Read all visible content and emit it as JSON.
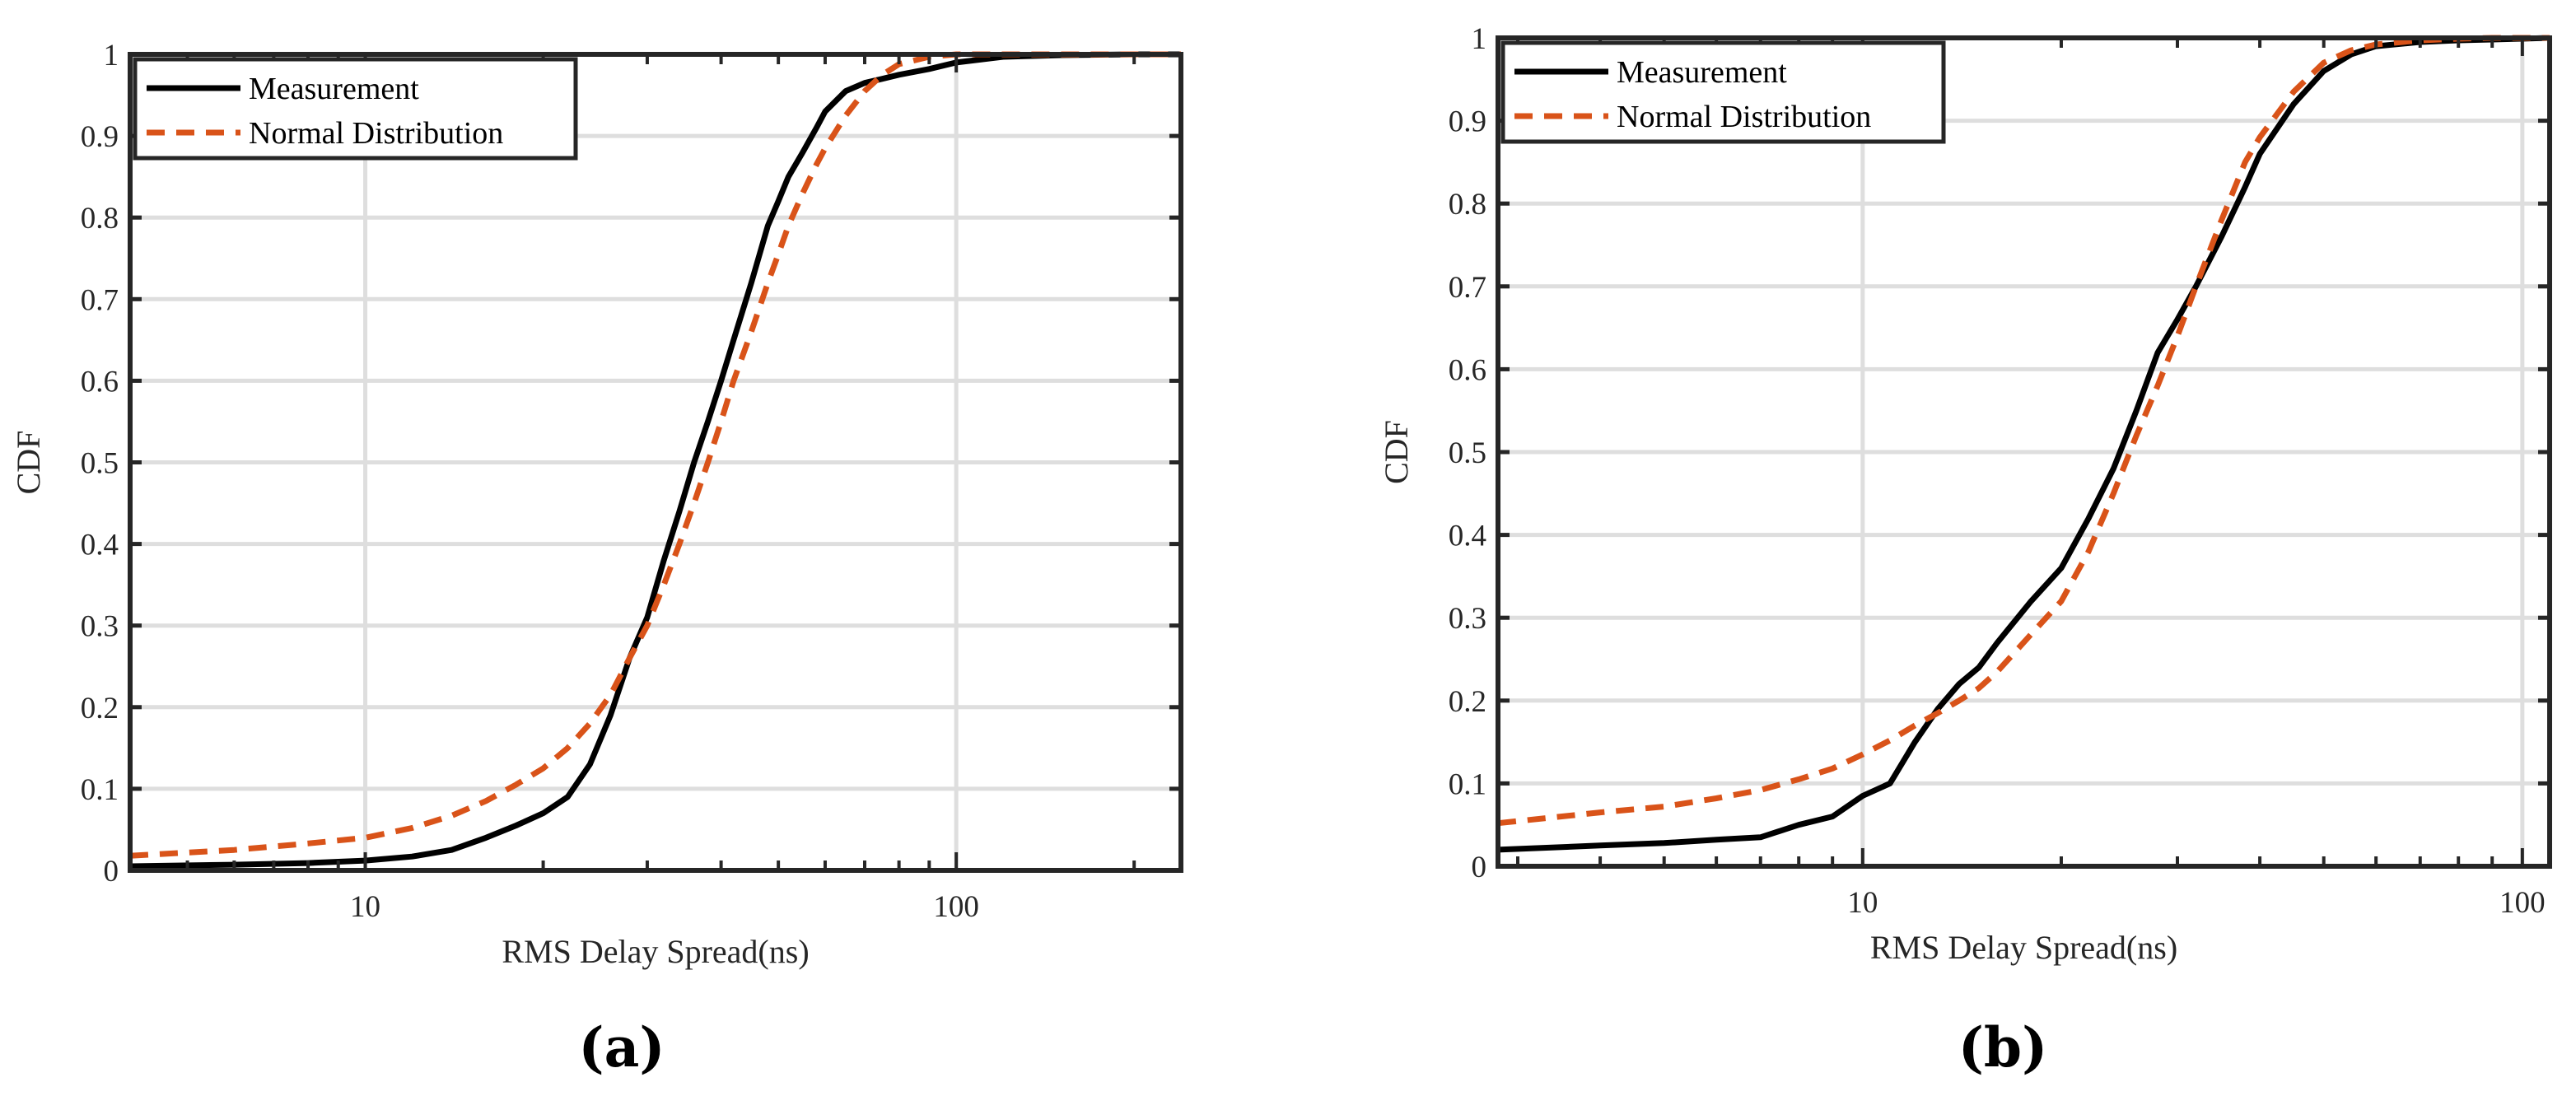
{
  "colors": {
    "measurement": "#000000",
    "normal": "#d95319",
    "grid": "#dedede",
    "axis": "#262626"
  },
  "chart_data": [
    {
      "type": "line",
      "panel_label": "(a)",
      "xlabel": "RMS Delay Spread(ns)",
      "ylabel": "CDF",
      "xscale": "log",
      "xlim": [
        4,
        240
      ],
      "ylim": [
        0,
        1
      ],
      "x_ticks": [
        10,
        100
      ],
      "x_tick_labels": [
        "10",
        "100"
      ],
      "y_ticks": [
        0,
        0.1,
        0.2,
        0.3,
        0.4,
        0.5,
        0.6,
        0.7,
        0.8,
        0.9,
        1
      ],
      "y_tick_labels": [
        "0",
        "0.1",
        "0.2",
        "0.3",
        "0.4",
        "0.5",
        "0.6",
        "0.7",
        "0.8",
        "0.9",
        "1"
      ],
      "grid": true,
      "legend_position": "top-left",
      "series": [
        {
          "name": "Measurement",
          "style": "solid",
          "x": [
            4,
            6,
            8,
            10,
            12,
            14,
            16,
            18,
            20,
            22,
            24,
            26,
            28,
            30,
            32,
            34,
            36,
            38,
            40,
            42,
            45,
            48,
            50,
            52,
            55,
            58,
            60,
            65,
            70,
            75,
            80,
            90,
            100,
            120,
            150,
            200,
            240
          ],
          "y": [
            0.005,
            0.007,
            0.009,
            0.012,
            0.017,
            0.025,
            0.04,
            0.055,
            0.07,
            0.09,
            0.13,
            0.19,
            0.26,
            0.31,
            0.38,
            0.44,
            0.5,
            0.55,
            0.6,
            0.65,
            0.72,
            0.79,
            0.82,
            0.85,
            0.88,
            0.91,
            0.93,
            0.955,
            0.965,
            0.97,
            0.975,
            0.982,
            0.99,
            0.997,
            0.999,
            1.0,
            1.0
          ]
        },
        {
          "name": "Normal Distribution",
          "style": "dashed",
          "x": [
            4,
            6,
            8,
            10,
            12,
            14,
            16,
            18,
            20,
            22,
            24,
            26,
            28,
            30,
            32,
            34,
            36,
            38,
            40,
            42,
            45,
            48,
            50,
            52,
            55,
            58,
            60,
            65,
            70,
            75,
            80,
            90,
            100,
            120,
            150,
            200,
            240
          ],
          "y": [
            0.018,
            0.025,
            0.033,
            0.04,
            0.052,
            0.067,
            0.085,
            0.105,
            0.125,
            0.15,
            0.18,
            0.215,
            0.26,
            0.3,
            0.35,
            0.4,
            0.45,
            0.5,
            0.55,
            0.6,
            0.66,
            0.72,
            0.755,
            0.79,
            0.83,
            0.865,
            0.885,
            0.925,
            0.955,
            0.975,
            0.988,
            0.997,
            1.0,
            1.0,
            1.0,
            1.0,
            1.0
          ]
        }
      ]
    },
    {
      "type": "line",
      "panel_label": "(b)",
      "xlabel": "RMS Delay Spread(ns)",
      "ylabel": "CDF",
      "xscale": "log",
      "xlim": [
        2.8,
        110
      ],
      "ylim": [
        0,
        1
      ],
      "x_ticks": [
        10,
        100
      ],
      "x_tick_labels": [
        "10",
        "100"
      ],
      "y_ticks": [
        0,
        0.1,
        0.2,
        0.3,
        0.4,
        0.5,
        0.6,
        0.7,
        0.8,
        0.9,
        1
      ],
      "y_tick_labels": [
        "0",
        "0.1",
        "0.2",
        "0.3",
        "0.4",
        "0.5",
        "0.6",
        "0.7",
        "0.8",
        "0.9",
        "1"
      ],
      "grid": true,
      "legend_position": "top-left",
      "series": [
        {
          "name": "Measurement",
          "style": "solid",
          "x": [
            2.8,
            4,
            5,
            6,
            7,
            8,
            9,
            10,
            11,
            12,
            13,
            14,
            15,
            16,
            18,
            20,
            22,
            24,
            26,
            28,
            30,
            32,
            35,
            38,
            40,
            45,
            50,
            55,
            60,
            70,
            80,
            90,
            100,
            110
          ],
          "y": [
            0.02,
            0.025,
            0.028,
            0.032,
            0.035,
            0.05,
            0.06,
            0.085,
            0.1,
            0.15,
            0.19,
            0.22,
            0.24,
            0.27,
            0.32,
            0.36,
            0.42,
            0.48,
            0.55,
            0.62,
            0.66,
            0.7,
            0.76,
            0.82,
            0.86,
            0.92,
            0.96,
            0.98,
            0.99,
            0.995,
            0.997,
            0.998,
            0.999,
            1.0
          ]
        },
        {
          "name": "Normal Distribution",
          "style": "dashed",
          "x": [
            2.8,
            4,
            5,
            6,
            7,
            8,
            9,
            10,
            11,
            12,
            13,
            14,
            15,
            16,
            18,
            20,
            22,
            24,
            26,
            28,
            30,
            32,
            35,
            38,
            40,
            45,
            50,
            55,
            60,
            70,
            80,
            90,
            100,
            110
          ],
          "y": [
            0.052,
            0.065,
            0.072,
            0.082,
            0.092,
            0.105,
            0.118,
            0.135,
            0.152,
            0.17,
            0.185,
            0.2,
            0.215,
            0.235,
            0.28,
            0.32,
            0.38,
            0.45,
            0.52,
            0.58,
            0.64,
            0.7,
            0.78,
            0.85,
            0.88,
            0.935,
            0.97,
            0.985,
            0.992,
            0.997,
            0.999,
            1.0,
            1.0,
            1.0
          ]
        }
      ]
    }
  ]
}
